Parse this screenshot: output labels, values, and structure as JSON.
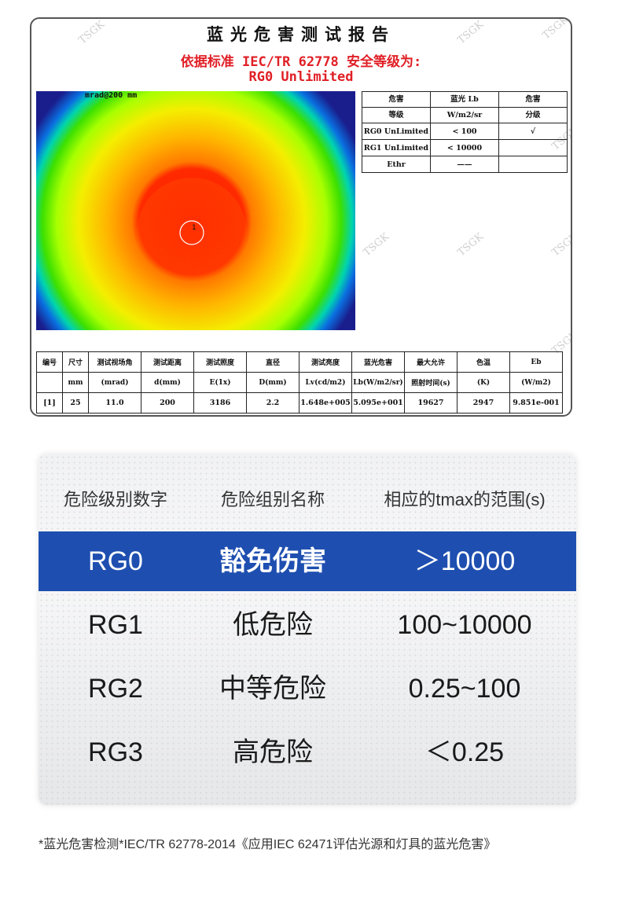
{
  "report": {
    "title": "蓝光危害测试报告",
    "standard_line": "依据标准 IEC/TR 62778 安全等级为:",
    "result_line": "RG0 Unlimited",
    "heatmap_label": "mrad@200 mm",
    "heatmap_marker": "1",
    "watermark": "TSGK",
    "hazard_table": {
      "headers": [
        {
          "l1": "危害",
          "l2": "等级"
        },
        {
          "l1": "蓝光 Lb",
          "l2": "W/m2/sr"
        },
        {
          "l1": "危害",
          "l2": "分级"
        }
      ],
      "rows": [
        [
          "RG0 UnLimited",
          "< 100",
          "√"
        ],
        [
          "RG1 UnLimited",
          "< 10000",
          ""
        ],
        [
          "Ethr",
          "——",
          ""
        ]
      ]
    },
    "data_table": {
      "headers": [
        {
          "l1": "编号",
          "l2": ""
        },
        {
          "l1": "尺寸",
          "l2": "mm"
        },
        {
          "l1": "测试视场角",
          "l2": "(mrad)"
        },
        {
          "l1": "测试距离",
          "l2": "d(mm)"
        },
        {
          "l1": "测试照度",
          "l2": "E(1x)"
        },
        {
          "l1": "直径",
          "l2": "D(mm)"
        },
        {
          "l1": "测试亮度",
          "l2": "Lv(cd/m2)"
        },
        {
          "l1": "蓝光危害",
          "l2": "Lb(W/m2/sr)"
        },
        {
          "l1": "最大允许",
          "l2": "照射时间(s)"
        },
        {
          "l1": "色温",
          "l2": "(K)"
        },
        {
          "l1": "Eb",
          "l2": "(W/m2)"
        }
      ],
      "row": [
        "[1]",
        "25",
        "11.0",
        "200",
        "3186",
        "2.2",
        "1.648e+005",
        "5.095e+001",
        "19627",
        "2947",
        "9.851e-001"
      ]
    }
  },
  "classification": {
    "headers": [
      "危险级别数字",
      "危险组别名称",
      "相应的tmax的范围(s)"
    ],
    "rows": [
      {
        "level": "RG0",
        "name": "豁免伤害",
        "range": "＞10000",
        "highlighted": true
      },
      {
        "level": "RG1",
        "name": "低危险",
        "range": "100~10000",
        "highlighted": false
      },
      {
        "level": "RG2",
        "name": "中等危险",
        "range": "0.25~100",
        "highlighted": false
      },
      {
        "level": "RG3",
        "name": "高危险",
        "range": "＜0.25",
        "highlighted": false
      }
    ],
    "highlight_color": "#1e4fb0"
  },
  "footnote": "*蓝光危害检测*IEC/TR 62778-2014《应用IEC 62471评估光源和灯具的蓝光危害》"
}
